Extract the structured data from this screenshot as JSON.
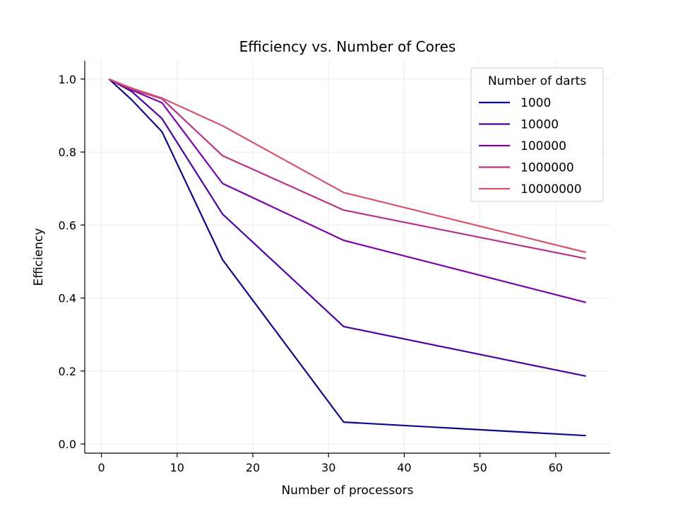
{
  "chart_data": {
    "type": "line",
    "title": "Efficiency vs. Number of Cores",
    "xlabel": "Number of processors",
    "ylabel": "Efficiency",
    "xlim": [
      -2.2,
      67.2
    ],
    "ylim": [
      -0.025,
      1.05
    ],
    "x_ticks": [
      0,
      10,
      20,
      30,
      40,
      50,
      60
    ],
    "y_ticks": [
      0.0,
      0.2,
      0.4,
      0.6,
      0.8,
      1.0
    ],
    "y_tick_labels": [
      "0.0",
      "0.2",
      "0.4",
      "0.6",
      "0.8",
      "1.0"
    ],
    "grid": true,
    "legend": {
      "title": "Number of darts",
      "position": "top-right"
    },
    "x": [
      1,
      4,
      8,
      16,
      32,
      64
    ],
    "series": [
      {
        "name": "1000",
        "color": "#0d0887",
        "values": [
          1.0,
          0.943,
          0.856,
          0.505,
          0.06,
          0.023
        ]
      },
      {
        "name": "10000",
        "color": "#4b03a1",
        "values": [
          1.0,
          0.966,
          0.892,
          0.63,
          0.322,
          0.186
        ]
      },
      {
        "name": "100000",
        "color": "#7d03a8",
        "values": [
          1.0,
          0.97,
          0.935,
          0.714,
          0.558,
          0.388
        ]
      },
      {
        "name": "1000000",
        "color": "#b83289",
        "values": [
          1.0,
          0.972,
          0.946,
          0.79,
          0.641,
          0.508
        ]
      },
      {
        "name": "10000000",
        "color": "#d5546e",
        "values": [
          1.0,
          0.975,
          0.948,
          0.872,
          0.689,
          0.525
        ]
      }
    ]
  }
}
